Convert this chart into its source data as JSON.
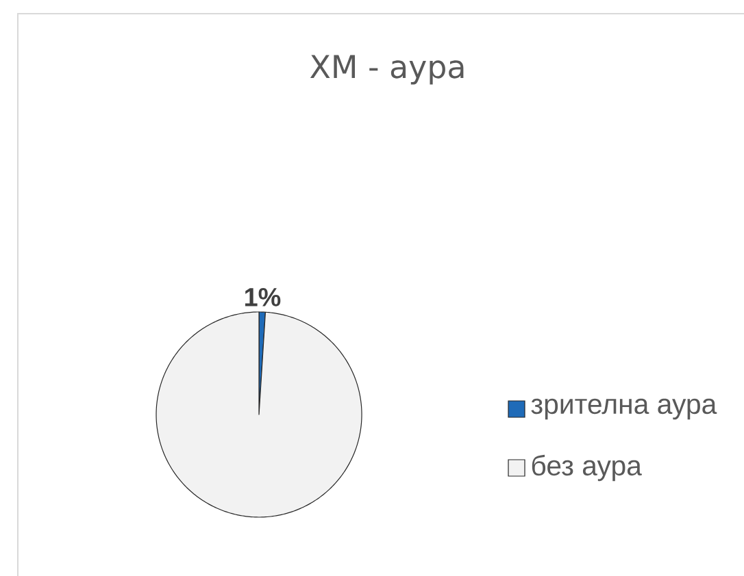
{
  "chart_data": {
    "type": "pie",
    "title": "ХМ - аура",
    "categories": [
      "зрителна аура",
      "без аура"
    ],
    "values": [
      1,
      99
    ],
    "colors": [
      "#1f6bb8",
      "#f2f2f2"
    ],
    "value_labels": [
      "1%",
      null
    ],
    "legend": "right"
  }
}
